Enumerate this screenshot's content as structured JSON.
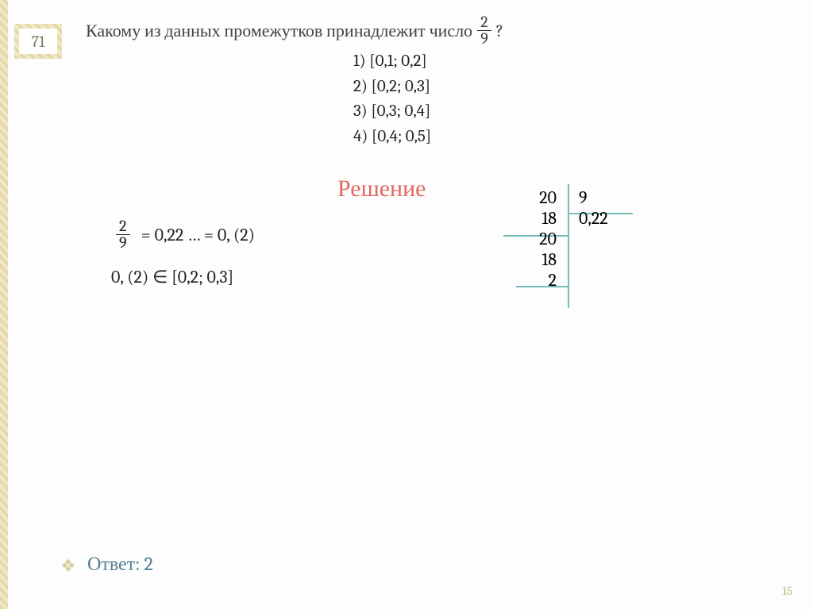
{
  "badge_number": "71",
  "question_prefix": "Какому из данных промежутков принадлежит число",
  "question_suffix": "?",
  "fraction": {
    "num": "2",
    "den": "9"
  },
  "options": [
    "1)  [0,1; 0,2]",
    "2)  [0,2; 0,3]",
    "3)  [0,3; 0,4]",
    "4)  [0,4; 0,5]"
  ],
  "solution_heading": "Решение",
  "worked": {
    "fraction": {
      "num": "2",
      "den": "9"
    },
    "eq1": " =  0,22 …  = 0, (2)",
    "line2": "0, (2)  ∈  [0,2; 0,3]"
  },
  "longdiv": {
    "dividend": "20",
    "divisor": "9",
    "sub1": "18",
    "rem1": "20",
    "sub2": "18",
    "rem2": "2",
    "quot": "0,22"
  },
  "answer_label": "Ответ: 2",
  "page_number": "15",
  "colors": {
    "accent_teal": "#67b6b0",
    "heading_red": "#e1695f",
    "answer_blue": "#538093",
    "border_gold": "#e6d9a8"
  }
}
